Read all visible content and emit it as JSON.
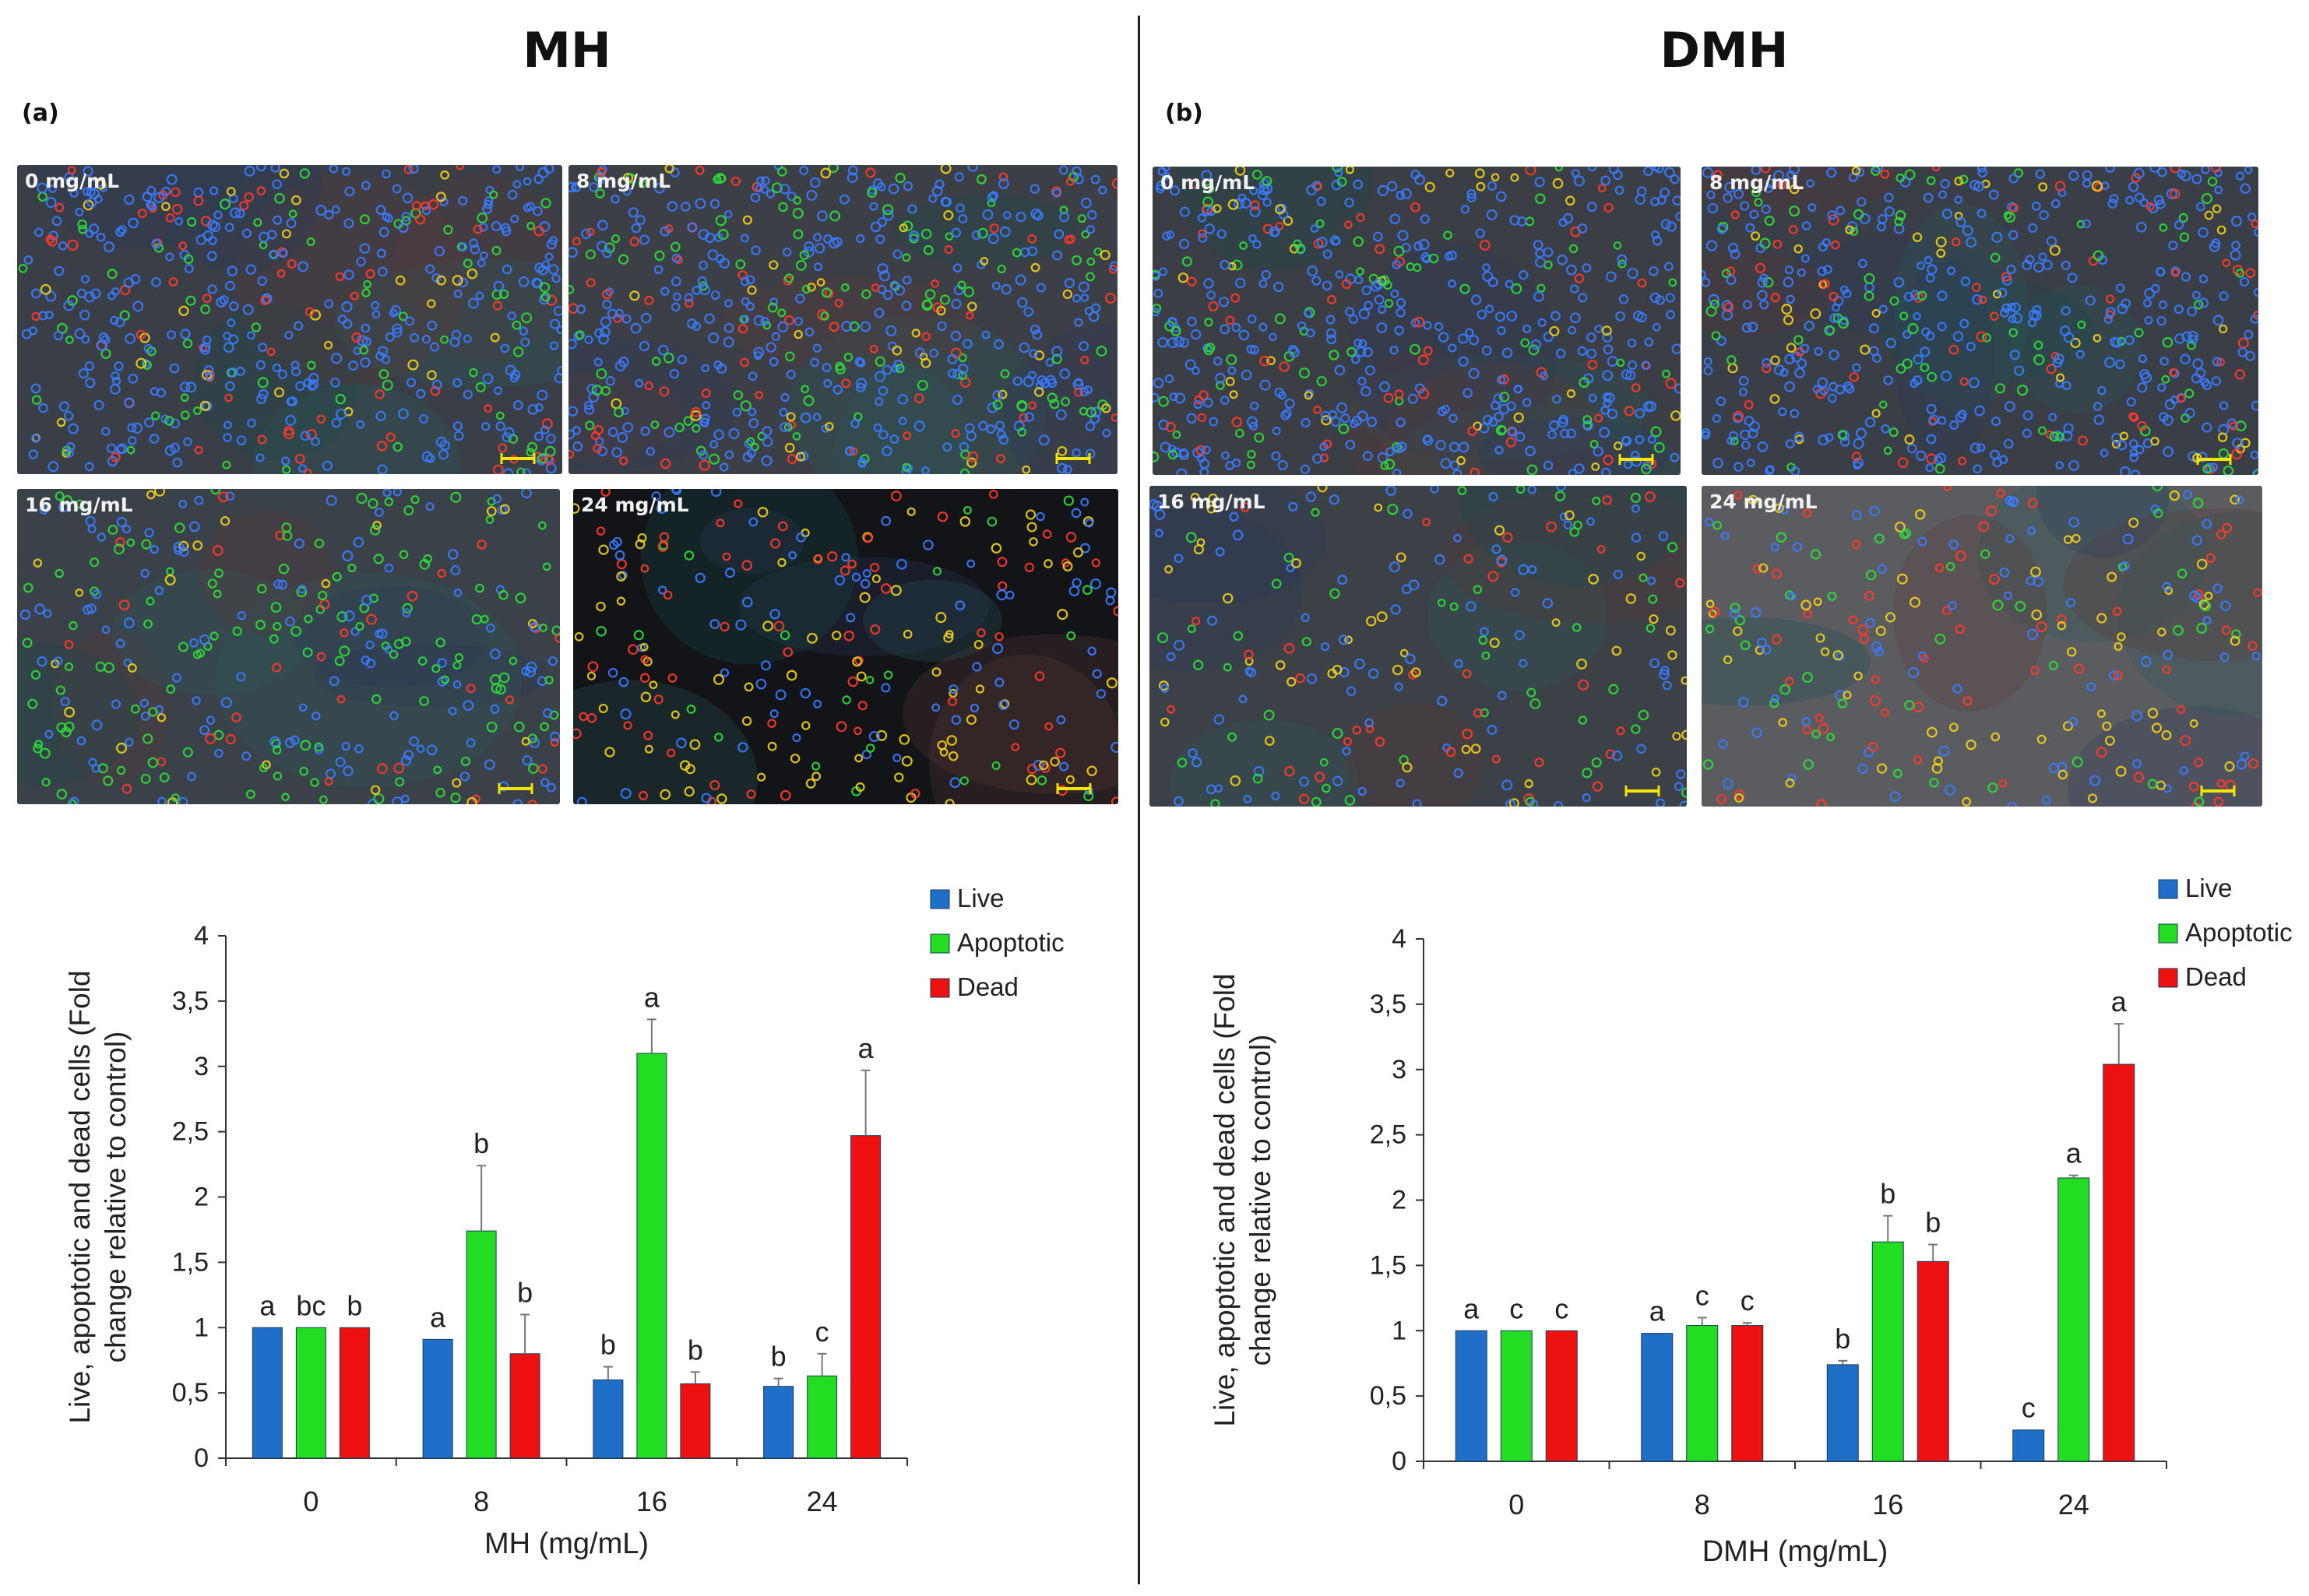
{
  "panels": [
    {
      "id": "mh",
      "heading": "MH",
      "tag": "(a)",
      "images": [
        {
          "label": "0 mg/mL",
          "bg": "#3a3f47",
          "cells": 520,
          "mix": [
            0.7,
            0.14,
            0.1,
            0.06
          ]
        },
        {
          "label": "8 mg/mL",
          "bg": "#3c3f45",
          "cells": 560,
          "mix": [
            0.62,
            0.18,
            0.12,
            0.08
          ]
        },
        {
          "label": "16 mg/mL",
          "bg": "#3b4148",
          "cells": 330,
          "mix": [
            0.38,
            0.45,
            0.09,
            0.08
          ]
        },
        {
          "label": "24 mg/mL",
          "bg": "#121418",
          "cells": 260,
          "mix": [
            0.3,
            0.08,
            0.3,
            0.32
          ]
        }
      ],
      "chart_data": {
        "type": "bar",
        "categories": [
          "0",
          "8",
          "16",
          "24"
        ],
        "series": [
          {
            "name": "Live",
            "color": "#1f6fc8",
            "values": [
              1.0,
              0.91,
              0.6,
              0.55
            ],
            "errors": [
              0.0,
              0.0,
              0.1,
              0.06
            ],
            "letters": [
              "a",
              "a",
              "b",
              "b"
            ]
          },
          {
            "name": "Apoptotic",
            "color": "#22dd22",
            "values": [
              1.0,
              1.74,
              3.1,
              0.63
            ],
            "errors": [
              0.0,
              0.5,
              0.26,
              0.17
            ],
            "letters": [
              "bc",
              "b",
              "a",
              "c"
            ]
          },
          {
            "name": "Dead",
            "color": "#ee1111",
            "values": [
              1.0,
              0.8,
              0.57,
              2.47
            ],
            "errors": [
              0.0,
              0.3,
              0.09,
              0.5
            ],
            "letters": [
              "b",
              "b",
              "b",
              "a"
            ]
          }
        ],
        "xlabel": "MH (mg/mL)",
        "ylabel_lines": [
          "Live, apoptotic and dead cells (Fold",
          "change relative to control)"
        ],
        "ylim": [
          0,
          4
        ],
        "yticks": [
          "0",
          "0,5",
          "1",
          "1,5",
          "2",
          "2,5",
          "3",
          "3,5",
          "4"
        ],
        "legend": [
          "Live",
          "Apoptotic",
          "Dead"
        ]
      }
    },
    {
      "id": "dmh",
      "heading": "DMH",
      "tag": "(b)",
      "images": [
        {
          "label": "0 mg/mL",
          "bg": "#3b3e44",
          "cells": 540,
          "mix": [
            0.7,
            0.13,
            0.11,
            0.06
          ]
        },
        {
          "label": "8 mg/mL",
          "bg": "#3a3e46",
          "cells": 560,
          "mix": [
            0.64,
            0.15,
            0.13,
            0.08
          ]
        },
        {
          "label": "16 mg/mL",
          "bg": "#3c4047",
          "cells": 230,
          "mix": [
            0.4,
            0.25,
            0.15,
            0.2
          ]
        },
        {
          "label": "24 mg/mL",
          "bg": "#5a5c60",
          "cells": 250,
          "mix": [
            0.34,
            0.2,
            0.22,
            0.24
          ]
        }
      ],
      "chart_data": {
        "type": "bar",
        "categories": [
          "0",
          "8",
          "16",
          "24"
        ],
        "series": [
          {
            "name": "Live",
            "color": "#1f6fc8",
            "values": [
              1.0,
              0.98,
              0.74,
              0.24
            ],
            "errors": [
              0.0,
              0.0,
              0.03,
              0.0
            ],
            "letters": [
              "a",
              "a",
              "b",
              "c"
            ]
          },
          {
            "name": "Apoptotic",
            "color": "#22dd22",
            "values": [
              1.0,
              1.04,
              1.68,
              2.17
            ],
            "errors": [
              0.0,
              0.06,
              0.2,
              0.02
            ],
            "letters": [
              "c",
              "c",
              "b",
              "a"
            ]
          },
          {
            "name": "Dead",
            "color": "#ee1111",
            "values": [
              1.0,
              1.04,
              1.53,
              3.04
            ],
            "errors": [
              0.0,
              0.02,
              0.13,
              0.31
            ],
            "letters": [
              "c",
              "c",
              "b",
              "a"
            ]
          }
        ],
        "xlabel": "DMH (mg/mL)",
        "ylabel_lines": [
          "Live, apoptotic and dead cells (Fold",
          "change relative to control)"
        ],
        "ylim": [
          0,
          4
        ],
        "yticks": [
          "0",
          "0,5",
          "1",
          "1,5",
          "2",
          "2,5",
          "3",
          "3,5",
          "4"
        ],
        "legend": [
          "Live",
          "Apoptotic",
          "Dead"
        ]
      }
    }
  ],
  "cell_colors": [
    "#3a7bff",
    "#2fdc3a",
    "#ff3a2a",
    "#f2d21a"
  ],
  "scale_bar_color": "#f2e600"
}
